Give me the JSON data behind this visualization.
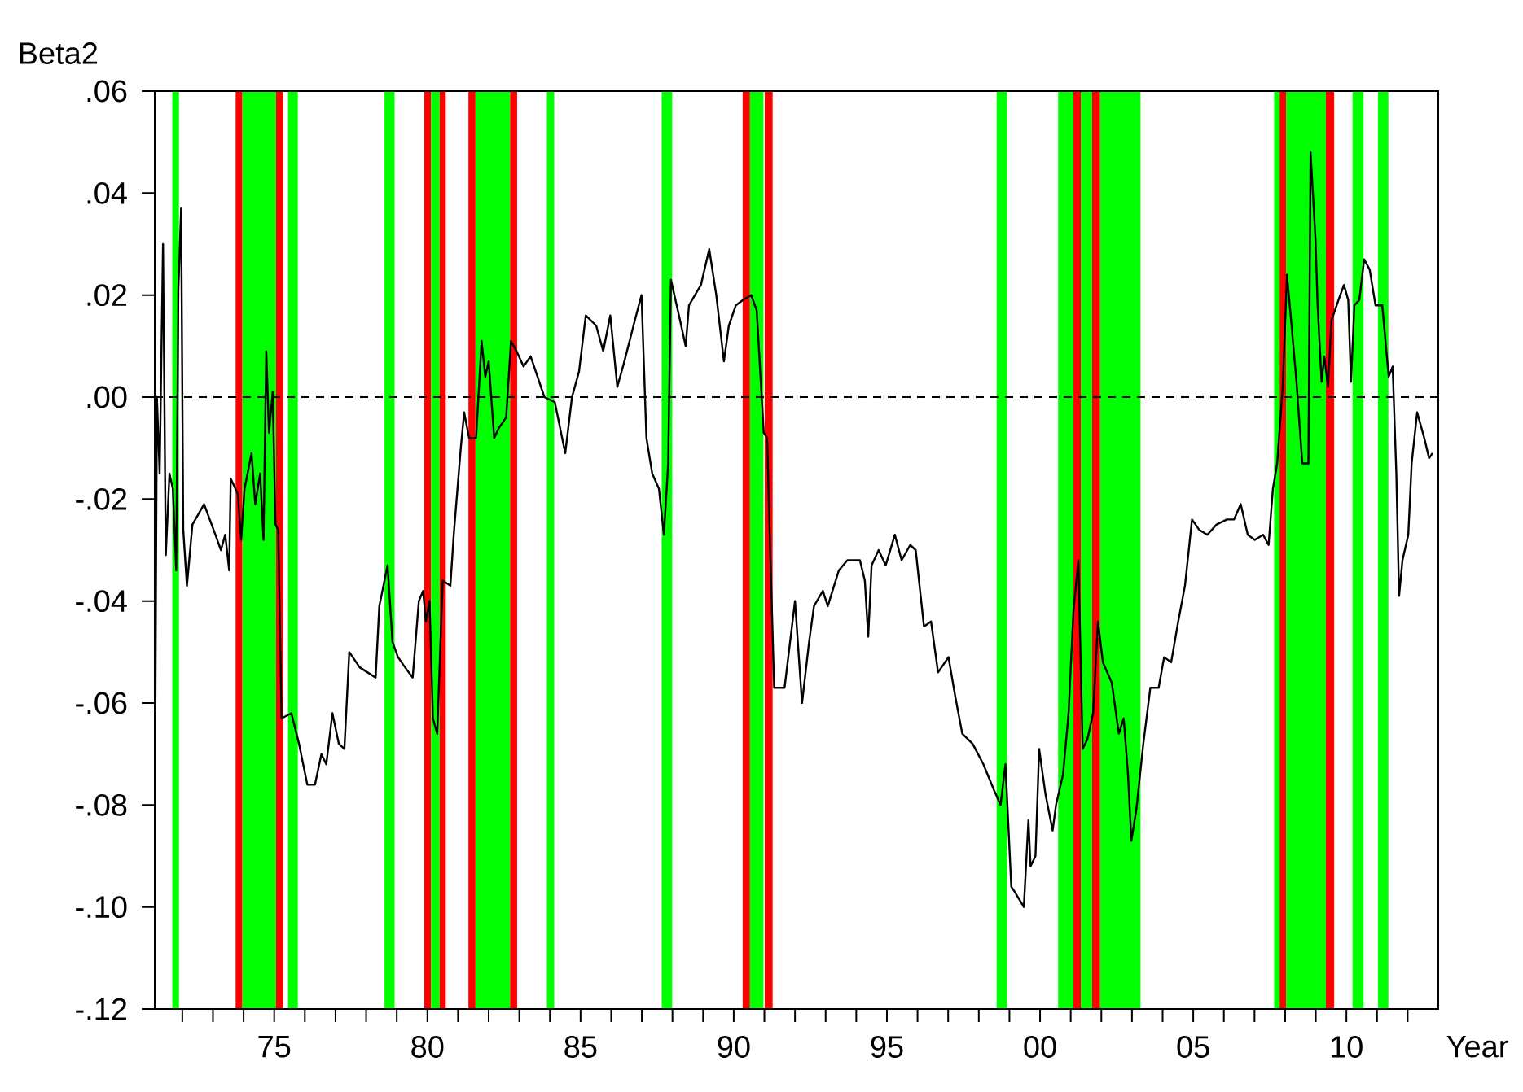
{
  "chart_data": {
    "type": "line",
    "ylabel": "Beta2",
    "xlabel": "Year",
    "xlim": [
      1971.1,
      2013.0
    ],
    "ylim": [
      -0.12,
      0.06
    ],
    "xticks": [
      {
        "value": 1972,
        "label": null
      },
      {
        "value": 1973,
        "label": null
      },
      {
        "value": 1974,
        "label": null
      },
      {
        "value": 1975,
        "label": "75"
      },
      {
        "value": 1976,
        "label": null
      },
      {
        "value": 1977,
        "label": null
      },
      {
        "value": 1978,
        "label": null
      },
      {
        "value": 1979,
        "label": null
      },
      {
        "value": 1980,
        "label": "80"
      },
      {
        "value": 1981,
        "label": null
      },
      {
        "value": 1982,
        "label": null
      },
      {
        "value": 1983,
        "label": null
      },
      {
        "value": 1984,
        "label": null
      },
      {
        "value": 1985,
        "label": "85"
      },
      {
        "value": 1986,
        "label": null
      },
      {
        "value": 1987,
        "label": null
      },
      {
        "value": 1988,
        "label": null
      },
      {
        "value": 1989,
        "label": null
      },
      {
        "value": 1990,
        "label": "90"
      },
      {
        "value": 1991,
        "label": null
      },
      {
        "value": 1992,
        "label": null
      },
      {
        "value": 1993,
        "label": null
      },
      {
        "value": 1994,
        "label": null
      },
      {
        "value": 1995,
        "label": "95"
      },
      {
        "value": 1996,
        "label": null
      },
      {
        "value": 1997,
        "label": null
      },
      {
        "value": 1998,
        "label": null
      },
      {
        "value": 1999,
        "label": null
      },
      {
        "value": 2000,
        "label": "00"
      },
      {
        "value": 2001,
        "label": null
      },
      {
        "value": 2002,
        "label": null
      },
      {
        "value": 2003,
        "label": null
      },
      {
        "value": 2004,
        "label": null
      },
      {
        "value": 2005,
        "label": "05"
      },
      {
        "value": 2006,
        "label": null
      },
      {
        "value": 2007,
        "label": null
      },
      {
        "value": 2008,
        "label": null
      },
      {
        "value": 2009,
        "label": null
      },
      {
        "value": 2010,
        "label": "10"
      },
      {
        "value": 2011,
        "label": null
      },
      {
        "value": 2012,
        "label": null
      }
    ],
    "yticks": [
      {
        "value": 0.06,
        "label": ".06"
      },
      {
        "value": 0.04,
        "label": ".04"
      },
      {
        "value": 0.02,
        "label": ".02"
      },
      {
        "value": 0.0,
        "label": ".00"
      },
      {
        "value": -0.02,
        "label": "-.02"
      },
      {
        "value": -0.04,
        "label": "-.04"
      },
      {
        "value": -0.06,
        "label": "-.06"
      },
      {
        "value": -0.08,
        "label": "-.08"
      },
      {
        "value": -0.1,
        "label": "-.10"
      },
      {
        "value": -0.12,
        "label": "-.12"
      }
    ],
    "grid": false,
    "marker": "none",
    "line_style": "solid",
    "ref_lines": [
      {
        "axis": "y",
        "value": 0,
        "color": "#000000",
        "line_style": "dashed"
      }
    ],
    "bands": [
      {
        "axis": "x",
        "from": 1971.67,
        "to": 1971.89,
        "color": "#00ff00"
      },
      {
        "axis": "x",
        "from": 1973.74,
        "to": 1973.96,
        "color": "#ff0000"
      },
      {
        "axis": "x",
        "from": 1973.96,
        "to": 1975.06,
        "color": "#00ff00"
      },
      {
        "axis": "x",
        "from": 1975.06,
        "to": 1975.29,
        "color": "#ff0000"
      },
      {
        "axis": "x",
        "from": 1975.45,
        "to": 1975.77,
        "color": "#00ff00"
      },
      {
        "axis": "x",
        "from": 1978.6,
        "to": 1978.93,
        "color": "#00ff00"
      },
      {
        "axis": "x",
        "from": 1979.9,
        "to": 1980.12,
        "color": "#ff0000"
      },
      {
        "axis": "x",
        "from": 1980.12,
        "to": 1980.4,
        "color": "#00ff00"
      },
      {
        "axis": "x",
        "from": 1980.4,
        "to": 1980.6,
        "color": "#ff0000"
      },
      {
        "axis": "x",
        "from": 1981.34,
        "to": 1981.57,
        "color": "#ff0000"
      },
      {
        "axis": "x",
        "from": 1981.57,
        "to": 1982.7,
        "color": "#00ff00"
      },
      {
        "axis": "x",
        "from": 1982.7,
        "to": 1982.93,
        "color": "#ff0000"
      },
      {
        "axis": "x",
        "from": 1983.9,
        "to": 1984.14,
        "color": "#00ff00"
      },
      {
        "axis": "x",
        "from": 1987.65,
        "to": 1987.99,
        "color": "#00ff00"
      },
      {
        "axis": "x",
        "from": 1990.29,
        "to": 1990.53,
        "color": "#ff0000"
      },
      {
        "axis": "x",
        "from": 1990.53,
        "to": 1990.97,
        "color": "#00ff00"
      },
      {
        "axis": "x",
        "from": 1991.01,
        "to": 1991.27,
        "color": "#ff0000"
      },
      {
        "axis": "x",
        "from": 1998.58,
        "to": 1998.92,
        "color": "#00ff00"
      },
      {
        "axis": "x",
        "from": 2000.59,
        "to": 2001.09,
        "color": "#00ff00"
      },
      {
        "axis": "x",
        "from": 2001.09,
        "to": 2001.33,
        "color": "#ff0000"
      },
      {
        "axis": "x",
        "from": 2001.33,
        "to": 2001.7,
        "color": "#00ff00"
      },
      {
        "axis": "x",
        "from": 2001.7,
        "to": 2001.96,
        "color": "#ff0000"
      },
      {
        "axis": "x",
        "from": 2001.96,
        "to": 2003.28,
        "color": "#00ff00"
      },
      {
        "axis": "x",
        "from": 2007.64,
        "to": 2007.82,
        "color": "#00ff00"
      },
      {
        "axis": "x",
        "from": 2007.82,
        "to": 2008.03,
        "color": "#ff0000"
      },
      {
        "axis": "x",
        "from": 2008.03,
        "to": 2009.33,
        "color": "#00ff00"
      },
      {
        "axis": "x",
        "from": 2009.33,
        "to": 2009.6,
        "color": "#ff0000"
      },
      {
        "axis": "x",
        "from": 2010.2,
        "to": 2010.56,
        "color": "#00ff00"
      },
      {
        "axis": "x",
        "from": 2011.03,
        "to": 2011.37,
        "color": "#00ff00"
      }
    ],
    "series": [
      {
        "color": "#000000",
        "x": [
          1971.12,
          1971.17,
          1971.26,
          1971.37,
          1971.46,
          1971.58,
          1971.69,
          1971.8,
          1971.87,
          1971.96,
          1972.03,
          1972.15,
          1972.33,
          1972.71,
          1973.08,
          1973.26,
          1973.4,
          1973.53,
          1973.58,
          1973.81,
          1973.92,
          1974.03,
          1974.26,
          1974.38,
          1974.54,
          1974.65,
          1974.74,
          1974.83,
          1974.95,
          1975.04,
          1975.13,
          1975.24,
          1975.56,
          1975.81,
          1976.08,
          1976.33,
          1976.54,
          1976.7,
          1976.9,
          1977.11,
          1977.29,
          1977.45,
          1977.79,
          1978.31,
          1978.43,
          1978.7,
          1978.86,
          1979.04,
          1979.27,
          1979.52,
          1979.72,
          1979.86,
          1979.95,
          1980.07,
          1980.18,
          1980.32,
          1980.41,
          1980.5,
          1980.75,
          1980.86,
          1981.09,
          1981.2,
          1981.36,
          1981.59,
          1981.77,
          1981.89,
          1982.0,
          1982.18,
          1982.34,
          1982.57,
          1982.73,
          1982.91,
          1983.14,
          1983.37,
          1983.82,
          1984.16,
          1984.5,
          1984.72,
          1984.95,
          1985.17,
          1985.51,
          1985.74,
          1985.97,
          1986.2,
          1986.43,
          1986.77,
          1986.99,
          1987.15,
          1987.34,
          1987.56,
          1987.72,
          1987.86,
          1987.95,
          1988.25,
          1988.43,
          1988.54,
          1988.93,
          1989.2,
          1989.43,
          1989.68,
          1989.84,
          1990.07,
          1990.29,
          1990.57,
          1990.75,
          1990.98,
          1991.09,
          1991.2,
          1991.32,
          1991.66,
          1992.0,
          1992.23,
          1992.46,
          1992.62,
          1992.91,
          1993.07,
          1993.43,
          1993.71,
          1994.12,
          1994.28,
          1994.39,
          1994.5,
          1994.73,
          1994.96,
          1995.26,
          1995.48,
          1995.76,
          1995.94,
          1996.21,
          1996.44,
          1996.67,
          1997.01,
          1997.24,
          1997.46,
          1997.8,
          1998.15,
          1998.49,
          1998.71,
          1998.87,
          1999.06,
          1999.17,
          1999.47,
          1999.62,
          1999.69,
          1999.85,
          1999.97,
          2000.18,
          2000.41,
          2000.52,
          2000.75,
          2000.93,
          2001.09,
          2001.25,
          2001.39,
          2001.55,
          2001.73,
          2001.89,
          2002.05,
          2002.34,
          2002.57,
          2002.73,
          2002.87,
          2002.98,
          2003.14,
          2003.37,
          2003.6,
          2003.87,
          2004.05,
          2004.28,
          2004.51,
          2004.73,
          2004.96,
          2005.19,
          2005.46,
          2005.76,
          2006.1,
          2006.33,
          2006.55,
          2006.78,
          2007.01,
          2007.28,
          2007.46,
          2007.6,
          2007.74,
          2007.92,
          2008.06,
          2008.21,
          2008.37,
          2008.56,
          2008.76,
          2008.83,
          2008.99,
          2009.06,
          2009.19,
          2009.28,
          2009.4,
          2009.51,
          2009.74,
          2009.92,
          2010.06,
          2010.15,
          2010.26,
          2010.42,
          2010.58,
          2010.76,
          2010.95,
          2011.17,
          2011.38,
          2011.51,
          2011.63,
          2011.72,
          2011.83,
          2012.02,
          2012.13,
          2012.31,
          2012.54,
          2012.7,
          2012.81
        ],
        "values": [
          -0.062,
          0.0,
          -0.015,
          0.03,
          -0.031,
          -0.015,
          -0.018,
          -0.034,
          0.021,
          0.037,
          -0.026,
          -0.037,
          -0.025,
          -0.021,
          -0.027,
          -0.03,
          -0.027,
          -0.034,
          -0.016,
          -0.019,
          -0.028,
          -0.018,
          -0.011,
          -0.021,
          -0.015,
          -0.028,
          0.009,
          -0.007,
          0.001,
          -0.025,
          -0.026,
          -0.063,
          -0.062,
          -0.068,
          -0.076,
          -0.076,
          -0.07,
          -0.072,
          -0.062,
          -0.068,
          -0.069,
          -0.05,
          -0.053,
          -0.055,
          -0.041,
          -0.033,
          -0.048,
          -0.051,
          -0.053,
          -0.055,
          -0.04,
          -0.038,
          -0.044,
          -0.04,
          -0.063,
          -0.066,
          -0.051,
          -0.036,
          -0.037,
          -0.027,
          -0.01,
          -0.003,
          -0.008,
          -0.008,
          0.011,
          0.004,
          0.007,
          -0.008,
          -0.006,
          -0.004,
          0.011,
          0.009,
          0.006,
          0.008,
          0.0,
          -0.001,
          -0.011,
          0.0,
          0.005,
          0.016,
          0.014,
          0.009,
          0.016,
          0.002,
          0.007,
          0.015,
          0.02,
          -0.008,
          -0.015,
          -0.018,
          -0.027,
          -0.013,
          0.023,
          0.015,
          0.01,
          0.018,
          0.022,
          0.029,
          0.02,
          0.007,
          0.014,
          0.018,
          0.019,
          0.02,
          0.017,
          -0.007,
          -0.008,
          -0.032,
          -0.057,
          -0.057,
          -0.04,
          -0.06,
          -0.048,
          -0.041,
          -0.038,
          -0.041,
          -0.034,
          -0.032,
          -0.032,
          -0.036,
          -0.047,
          -0.033,
          -0.03,
          -0.033,
          -0.027,
          -0.032,
          -0.029,
          -0.03,
          -0.045,
          -0.044,
          -0.054,
          -0.051,
          -0.059,
          -0.066,
          -0.068,
          -0.072,
          -0.077,
          -0.08,
          -0.072,
          -0.096,
          -0.097,
          -0.1,
          -0.083,
          -0.092,
          -0.09,
          -0.069,
          -0.078,
          -0.085,
          -0.08,
          -0.074,
          -0.062,
          -0.042,
          -0.032,
          -0.069,
          -0.067,
          -0.062,
          -0.044,
          -0.052,
          -0.056,
          -0.066,
          -0.063,
          -0.074,
          -0.087,
          -0.081,
          -0.068,
          -0.057,
          -0.057,
          -0.051,
          -0.052,
          -0.044,
          -0.037,
          -0.024,
          -0.026,
          -0.027,
          -0.025,
          -0.024,
          -0.024,
          -0.021,
          -0.027,
          -0.028,
          -0.027,
          -0.029,
          -0.018,
          -0.013,
          0.002,
          0.024,
          0.014,
          0.003,
          -0.013,
          -0.013,
          0.048,
          0.031,
          0.018,
          0.003,
          0.008,
          0.002,
          0.015,
          0.019,
          0.022,
          0.019,
          0.003,
          0.018,
          0.019,
          0.027,
          0.025,
          0.018,
          0.018,
          0.004,
          0.006,
          -0.015,
          -0.039,
          -0.032,
          -0.027,
          -0.013,
          -0.003,
          -0.008,
          -0.012,
          -0.011
        ]
      }
    ]
  }
}
